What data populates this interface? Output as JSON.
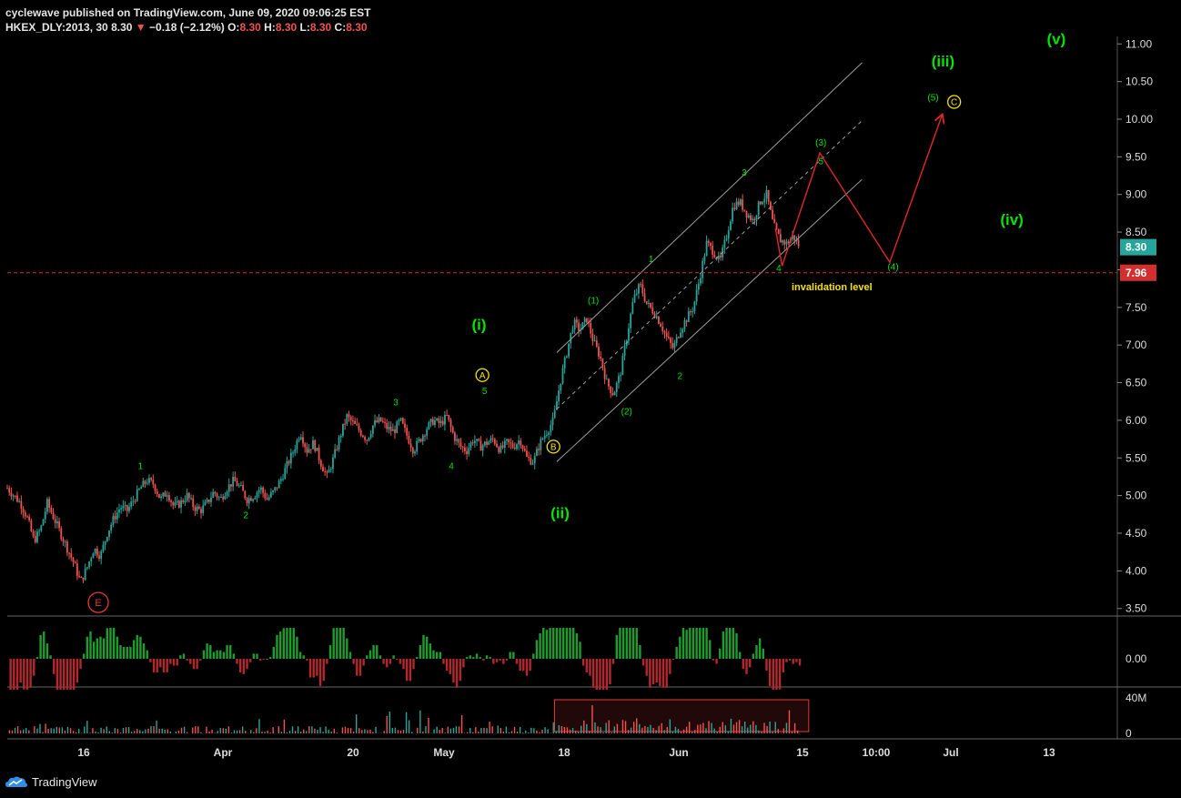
{
  "header": {
    "published_line": "cyclewave published on TradingView.com, June 09, 2020 09:06:25 EST",
    "symbol": "HKEX_DLY:2013, 30",
    "last": "8.30",
    "change": "−0.18 (−2.12%)",
    "o_label": "O:",
    "o_value": "8.30",
    "h_label": "H:",
    "h_value": "8.30",
    "l_label": "L:",
    "l_value": "8.30",
    "c_label": "C:",
    "c_value": "8.30"
  },
  "footer": {
    "brand": "TradingView",
    "logo_icon": "tradingview-cloud-icon"
  },
  "colors": {
    "background": "#000000",
    "up": "#26a69a",
    "down": "#ef5350",
    "wave_green": "#00e600",
    "wave_yellow": "#f5e400",
    "arrow_red": "#e0262a",
    "channel": "#9e9e9e",
    "price_tag": "#26a69a",
    "invalid_tag": "#d32f2f"
  },
  "chart_data": {
    "type": "candlestick",
    "price_axis": {
      "ticks": [
        "11.00",
        "10.50",
        "10.00",
        "9.50",
        "9.00",
        "8.50",
        "8.00",
        "7.50",
        "7.00",
        "6.50",
        "6.00",
        "5.50",
        "5.00",
        "4.50",
        "4.00",
        "3.50"
      ],
      "range": [
        3.4,
        11.1
      ]
    },
    "time_axis": {
      "ticks": [
        "16",
        "Apr",
        "20",
        "May",
        "18",
        "Jun",
        "15",
        "10:00",
        "Jul",
        "13"
      ]
    },
    "last_price_tag": "8.30",
    "invalidation_tag": "7.96",
    "invalidation_price": 7.96,
    "invalidation_label": "invalidation level",
    "price_path": [
      [
        0,
        5.1
      ],
      [
        0.6,
        5.0
      ],
      [
        1.2,
        4.9
      ],
      [
        1.8,
        4.7
      ],
      [
        2.4,
        4.4
      ],
      [
        3,
        4.55
      ],
      [
        3.6,
        4.9
      ],
      [
        4.2,
        4.7
      ],
      [
        4.8,
        4.5
      ],
      [
        5.4,
        4.3
      ],
      [
        6,
        4.1
      ],
      [
        6.6,
        3.85
      ],
      [
        7.2,
        4.05
      ],
      [
        7.8,
        4.3
      ],
      [
        8.4,
        4.2
      ],
      [
        9,
        4.5
      ],
      [
        9.6,
        4.7
      ],
      [
        10.2,
        4.85
      ],
      [
        10.8,
        4.8
      ],
      [
        11.4,
        4.95
      ],
      [
        12,
        5.1
      ],
      [
        12.6,
        5.2
      ],
      [
        13.2,
        5.15
      ],
      [
        13.8,
        4.95
      ],
      [
        14.4,
        5.05
      ],
      [
        15,
        4.85
      ],
      [
        15.6,
        4.9
      ],
      [
        16.2,
        5.0
      ],
      [
        16.8,
        4.85
      ],
      [
        17.4,
        4.8
      ],
      [
        18,
        4.9
      ],
      [
        18.6,
        5.05
      ],
      [
        19.2,
        4.95
      ],
      [
        19.8,
        5.1
      ],
      [
        20.4,
        5.2
      ],
      [
        21,
        5.1
      ],
      [
        21.6,
        4.95
      ],
      [
        22.2,
        5.0
      ],
      [
        22.8,
        5.1
      ],
      [
        23.4,
        4.95
      ],
      [
        24,
        5.05
      ],
      [
        24.6,
        5.2
      ],
      [
        25.2,
        5.4
      ],
      [
        25.8,
        5.6
      ],
      [
        26.4,
        5.85
      ],
      [
        27,
        5.6
      ],
      [
        27.6,
        5.7
      ],
      [
        28.2,
        5.45
      ],
      [
        28.8,
        5.25
      ],
      [
        29.4,
        5.5
      ],
      [
        30,
        5.8
      ],
      [
        30.6,
        6.05
      ],
      [
        31.2,
        5.95
      ],
      [
        31.8,
        5.85
      ],
      [
        32.4,
        5.75
      ],
      [
        33,
        5.95
      ],
      [
        33.6,
        6.0
      ],
      [
        34.2,
        5.9
      ],
      [
        34.8,
        5.85
      ],
      [
        35.4,
        6.0
      ],
      [
        36,
        5.8
      ],
      [
        36.6,
        5.6
      ],
      [
        37.2,
        5.75
      ],
      [
        37.8,
        5.9
      ],
      [
        38.4,
        6.0
      ],
      [
        39,
        5.95
      ],
      [
        39.6,
        6.05
      ],
      [
        40.2,
        5.8
      ],
      [
        40.8,
        5.65
      ],
      [
        41.4,
        5.6
      ],
      [
        42,
        5.75
      ],
      [
        42.6,
        5.65
      ],
      [
        43.2,
        5.7
      ],
      [
        43.8,
        5.75
      ],
      [
        44.4,
        5.6
      ],
      [
        45,
        5.7
      ],
      [
        45.6,
        5.65
      ],
      [
        46.2,
        5.75
      ],
      [
        46.8,
        5.5
      ],
      [
        47.4,
        5.45
      ],
      [
        48,
        5.7
      ],
      [
        48.6,
        5.85
      ],
      [
        49.2,
        6.0
      ],
      [
        49.8,
        6.5
      ],
      [
        50.4,
        6.9
      ],
      [
        51,
        7.3
      ],
      [
        51.6,
        7.2
      ],
      [
        52.2,
        7.35
      ],
      [
        52.8,
        7.05
      ],
      [
        53.4,
        6.85
      ],
      [
        54,
        6.5
      ],
      [
        54.6,
        6.35
      ],
      [
        55.2,
        6.6
      ],
      [
        55.8,
        7.1
      ],
      [
        56.4,
        7.6
      ],
      [
        57,
        7.8
      ],
      [
        57.6,
        7.55
      ],
      [
        58.2,
        7.45
      ],
      [
        58.8,
        7.3
      ],
      [
        59.4,
        7.1
      ],
      [
        60,
        6.95
      ],
      [
        60.6,
        7.2
      ],
      [
        61.2,
        7.35
      ],
      [
        61.8,
        7.5
      ],
      [
        62.4,
        7.9
      ],
      [
        63,
        8.35
      ],
      [
        63.6,
        8.25
      ],
      [
        64.2,
        8.1
      ],
      [
        64.8,
        8.45
      ],
      [
        65.4,
        8.85
      ],
      [
        66,
        8.9
      ],
      [
        66.6,
        8.75
      ],
      [
        67.2,
        8.65
      ],
      [
        67.8,
        8.9
      ],
      [
        68.4,
        9.0
      ],
      [
        69,
        8.6
      ],
      [
        69.6,
        8.4
      ],
      [
        70.2,
        8.35
      ],
      [
        70.8,
        8.45
      ],
      [
        71.4,
        8.3
      ]
    ],
    "osc_ticks": [
      "0.00"
    ],
    "volume_ticks": [
      "40M",
      "0"
    ],
    "waves": {
      "minor_green": [
        {
          "label": "1",
          "t": 12,
          "p": 5.35
        },
        {
          "label": "2",
          "t": 21.5,
          "p": 4.7
        },
        {
          "label": "3",
          "t": 35,
          "p": 6.2
        },
        {
          "label": "4",
          "t": 40,
          "p": 5.35
        },
        {
          "label": "5",
          "t": 43,
          "p": 6.35
        },
        {
          "label": "(1)",
          "t": 52.8,
          "p": 7.55
        },
        {
          "label": "(2)",
          "t": 55.8,
          "p": 6.08
        },
        {
          "label": "1",
          "t": 58,
          "p": 8.1
        },
        {
          "label": "2",
          "t": 60.6,
          "p": 6.55
        },
        {
          "label": "3",
          "t": 66.4,
          "p": 9.25
        },
        {
          "label": "4",
          "t": 69.5,
          "p": 7.98
        },
        {
          "label": "(3)",
          "t": 73.3,
          "p": 9.65
        },
        {
          "label": "5",
          "t": 73.3,
          "p": 9.4
        },
        {
          "label": "(4)",
          "t": 79.8,
          "p": 8.0
        },
        {
          "label": "(5)",
          "t": 83.4,
          "p": 10.25
        }
      ],
      "major_green": [
        {
          "label": "(i)",
          "t": 42.5,
          "p": 7.2
        },
        {
          "label": "(ii)",
          "t": 49.8,
          "p": 4.7
        },
        {
          "label": "(iii)",
          "t": 84.3,
          "p": 10.7
        },
        {
          "label": "(iv)",
          "t": 90.5,
          "p": 8.6
        },
        {
          "label": "(v)",
          "t": 94.5,
          "p": 11.0
        }
      ],
      "circled_yellow": [
        {
          "label": "A",
          "t": 42.8,
          "p": 6.6
        },
        {
          "label": "B",
          "t": 49.2,
          "p": 5.65
        },
        {
          "label": "C",
          "t": 85.3,
          "p": 10.23
        }
      ],
      "circled_red": [
        {
          "label": "E",
          "t": 8.2,
          "p": 3.58
        }
      ]
    },
    "projection": [
      [
        69.2,
        8.55
      ],
      [
        69.8,
        8.05
      ],
      [
        73.2,
        9.55
      ],
      [
        79.5,
        8.1
      ],
      [
        84.2,
        10.05
      ]
    ],
    "channel": {
      "lower": [
        [
          49.5,
          5.45
        ],
        [
          77,
          9.2
        ]
      ],
      "upper": [
        [
          49.5,
          6.9
        ],
        [
          77,
          10.75
        ]
      ],
      "mid": [
        [
          49.5,
          6.15
        ],
        [
          77,
          9.98
        ]
      ]
    }
  }
}
